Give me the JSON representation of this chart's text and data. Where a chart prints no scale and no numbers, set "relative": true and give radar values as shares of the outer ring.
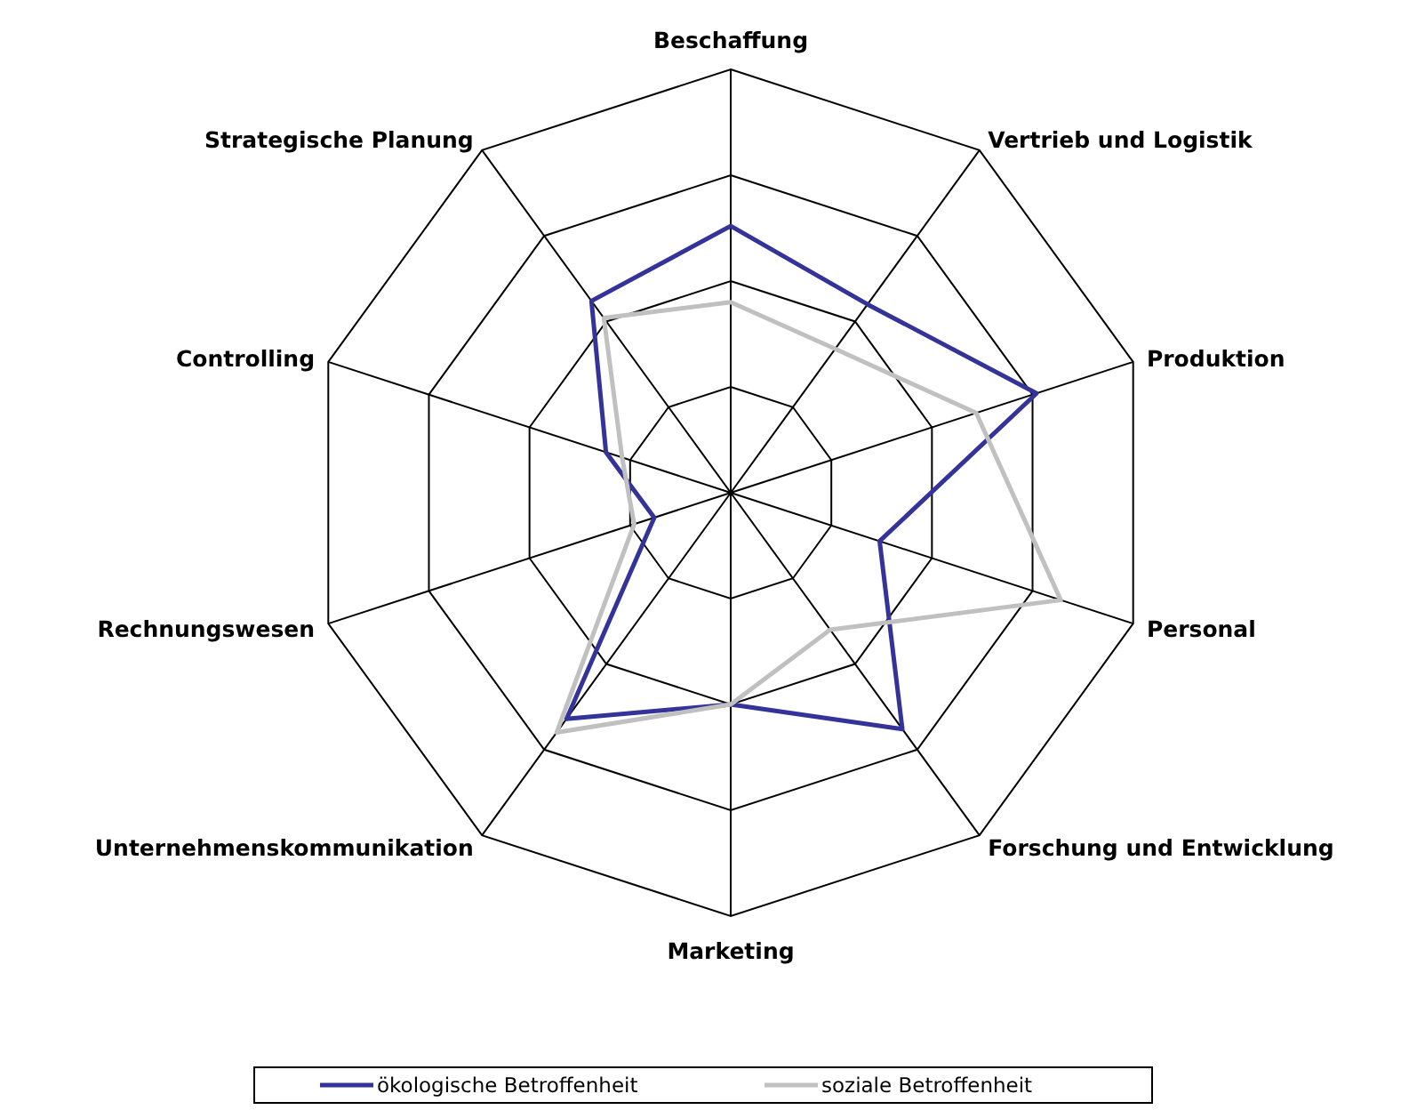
{
  "chart_data": {
    "type": "radar",
    "relative": true,
    "grid": true,
    "legend": "bottom",
    "categories": [
      "Beschaffung",
      "Vertrieb und Logistik",
      "Produktion",
      "Personal",
      "Forschung und Entwicklung",
      "Marketing",
      "Unternehmenskommunikation",
      "Rechnungswesen",
      "Controlling",
      "Strategische Planung"
    ],
    "series": [
      {
        "name": "ökologische Betroffenheit",
        "color": "#333399",
        "values": [
          0.63,
          0.55,
          0.76,
          0.37,
          0.69,
          0.5,
          0.66,
          0.19,
          0.31,
          0.56
        ]
      },
      {
        "name": "soziale Betroffenheit",
        "color": "#c0c0c0",
        "values": [
          0.45,
          0.42,
          0.61,
          0.82,
          0.4,
          0.5,
          0.7,
          0.24,
          0.27,
          0.51
        ]
      }
    ]
  }
}
